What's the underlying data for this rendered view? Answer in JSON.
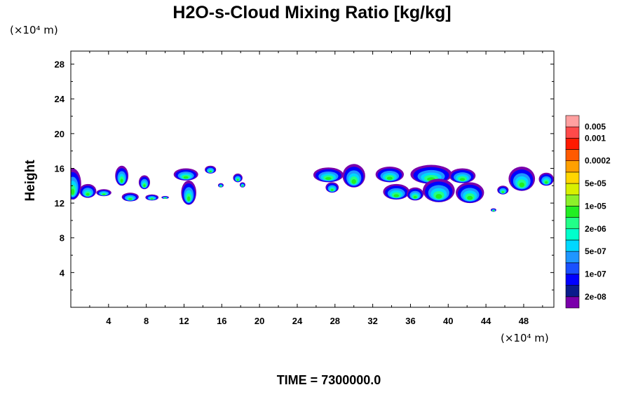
{
  "chart_data": {
    "type": "heatmap",
    "title": "H2O-s-Cloud Mixing Ratio [kg/kg]",
    "ylabel": "Height",
    "xlabel": "",
    "x_unit": "(×10⁴ m)",
    "y_unit": "(×10⁴ m)",
    "xlim": [
      0,
      51.2
    ],
    "ylim": [
      0,
      29.5
    ],
    "x_ticks": [
      4,
      8,
      12,
      16,
      20,
      24,
      28,
      32,
      36,
      40,
      44,
      48
    ],
    "y_ticks": [
      4,
      8,
      12,
      16,
      20,
      24,
      28
    ],
    "time_label": "TIME = 7300000.0",
    "colorbar": {
      "colors": [
        "#7a00aa",
        "#0a1c8c",
        "#0000ff",
        "#1a50ff",
        "#1f96ff",
        "#00d8ff",
        "#00ffcc",
        "#22ff88",
        "#22ee22",
        "#8cf02a",
        "#d8f000",
        "#ffd600",
        "#ffa000",
        "#ff5a00",
        "#ff1a00",
        "#ff4a4a",
        "#ffa0a0"
      ],
      "labels": [
        {
          "after": 1,
          "text": "2e-08"
        },
        {
          "after": 3,
          "text": "1e-07"
        },
        {
          "after": 5,
          "text": "5e-07"
        },
        {
          "after": 7,
          "text": "2e-06"
        },
        {
          "after": 9,
          "text": "1e-05"
        },
        {
          "after": 11,
          "text": "5e-05"
        },
        {
          "after": 13,
          "text": "0.0002"
        },
        {
          "after": 15,
          "text": "0.001"
        },
        {
          "after": 16,
          "text": "0.005"
        }
      ]
    },
    "cloud_cells": [
      {
        "x": 0.2,
        "top": 16.0,
        "bottom": 12.4,
        "hw": 0.9
      },
      {
        "x": 1.8,
        "top": 14.2,
        "bottom": 12.6,
        "hw": 0.9
      },
      {
        "x": 3.5,
        "top": 13.6,
        "bottom": 12.8,
        "hw": 0.8
      },
      {
        "x": 5.4,
        "top": 16.3,
        "bottom": 14.0,
        "hw": 0.7
      },
      {
        "x": 6.3,
        "top": 13.2,
        "bottom": 12.2,
        "hw": 0.9
      },
      {
        "x": 7.8,
        "top": 15.2,
        "bottom": 13.6,
        "hw": 0.6
      },
      {
        "x": 8.6,
        "top": 13.0,
        "bottom": 12.3,
        "hw": 0.7
      },
      {
        "x": 10.0,
        "top": 12.8,
        "bottom": 12.5,
        "hw": 0.4
      },
      {
        "x": 12.2,
        "top": 16.0,
        "bottom": 14.6,
        "hw": 1.3
      },
      {
        "x": 12.5,
        "top": 14.6,
        "bottom": 11.8,
        "hw": 0.8
      },
      {
        "x": 14.8,
        "top": 16.3,
        "bottom": 15.4,
        "hw": 0.6
      },
      {
        "x": 15.9,
        "top": 14.3,
        "bottom": 13.8,
        "hw": 0.3
      },
      {
        "x": 17.7,
        "top": 15.4,
        "bottom": 14.4,
        "hw": 0.5
      },
      {
        "x": 18.2,
        "top": 14.4,
        "bottom": 13.8,
        "hw": 0.3
      },
      {
        "x": 27.3,
        "top": 16.1,
        "bottom": 14.4,
        "hw": 1.6
      },
      {
        "x": 27.7,
        "top": 14.4,
        "bottom": 13.2,
        "hw": 0.7
      },
      {
        "x": 30.0,
        "top": 16.5,
        "bottom": 13.8,
        "hw": 1.2
      },
      {
        "x": 33.8,
        "top": 16.2,
        "bottom": 14.4,
        "hw": 1.5
      },
      {
        "x": 34.5,
        "top": 14.2,
        "bottom": 12.4,
        "hw": 1.4
      },
      {
        "x": 36.5,
        "top": 13.8,
        "bottom": 12.3,
        "hw": 0.9
      },
      {
        "x": 38.2,
        "top": 16.4,
        "bottom": 14.2,
        "hw": 2.2
      },
      {
        "x": 39.0,
        "top": 14.8,
        "bottom": 12.1,
        "hw": 1.7
      },
      {
        "x": 41.5,
        "top": 16.0,
        "bottom": 14.3,
        "hw": 1.4
      },
      {
        "x": 42.3,
        "top": 14.4,
        "bottom": 12.0,
        "hw": 1.5
      },
      {
        "x": 44.8,
        "top": 11.4,
        "bottom": 11.0,
        "hw": 0.3
      },
      {
        "x": 45.8,
        "top": 14.0,
        "bottom": 13.0,
        "hw": 0.6
      },
      {
        "x": 47.8,
        "top": 16.2,
        "bottom": 13.4,
        "hw": 1.4
      },
      {
        "x": 50.4,
        "top": 15.5,
        "bottom": 14.0,
        "hw": 0.8
      }
    ]
  }
}
